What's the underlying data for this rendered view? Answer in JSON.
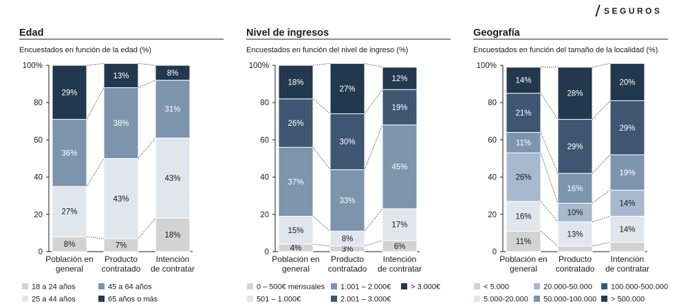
{
  "brand": {
    "name": "SEGUROS"
  },
  "colors": {
    "c1": "#d3d3d3",
    "c2": "#dfe6ec",
    "c3": "#a6b9cf",
    "c4": "#7d94ad",
    "c5": "#5b7390",
    "c6": "#3e5672",
    "c7": "#22384f"
  },
  "chart_data": [
    {
      "type": "bar",
      "stacked": true,
      "title": "Edad",
      "subtitle": "Encuestados en función de la edad (%)",
      "categories": [
        "Población en general",
        "Producto contratado",
        "Intención de contratar"
      ],
      "category_lines": [
        [
          "Población en",
          "general"
        ],
        [
          "Producto",
          "contratado"
        ],
        [
          "Intención",
          "de contratar"
        ]
      ],
      "ylim": [
        0,
        100
      ],
      "yticks": [
        "0",
        "20",
        "40",
        "60",
        "80",
        "100%"
      ],
      "legend_position": "bottom",
      "series": [
        {
          "name": "18 a 24 años",
          "color": "#d3d3d3",
          "text_color": "#1a1a1a",
          "values": [
            8,
            7,
            18
          ],
          "labels": [
            "8%",
            "7%",
            "18%"
          ]
        },
        {
          "name": "25 a 44 años",
          "color": "#dfe6ec",
          "text_color": "#1a1a1a",
          "values": [
            27,
            43,
            43
          ],
          "labels": [
            "27%",
            "43%",
            "43%"
          ]
        },
        {
          "name": "45 a 64 años",
          "color": "#7d94ad",
          "text_color": "#ffffff",
          "values": [
            36,
            38,
            31
          ],
          "labels": [
            "36%",
            "38%",
            "31%"
          ]
        },
        {
          "name": "65 años o más",
          "color": "#22384f",
          "text_color": "#ffffff",
          "values": [
            29,
            13,
            8
          ],
          "labels": [
            "29%",
            "13%",
            "8%"
          ]
        }
      ]
    },
    {
      "type": "bar",
      "stacked": true,
      "title": "Nivel de ingresos",
      "subtitle": "Encuestados en función del nivel de ingreso (%)",
      "categories": [
        "Población en general",
        "Producto contratado",
        "Intención de contratar"
      ],
      "category_lines": [
        [
          "Población en",
          "general"
        ],
        [
          "Producto",
          "contratado"
        ],
        [
          "Intención",
          "de contratar"
        ]
      ],
      "ylim": [
        0,
        100
      ],
      "yticks": [
        "0",
        "20",
        "40",
        "60",
        "80",
        "100%"
      ],
      "legend_position": "bottom",
      "series": [
        {
          "name": "0 – 500€ mensuales",
          "color": "#d3d3d3",
          "text_color": "#1a1a1a",
          "values": [
            4,
            3,
            6
          ],
          "labels": [
            "4%",
            "3%",
            "6%"
          ]
        },
        {
          "name": "501 – 1.000€",
          "color": "#dfe6ec",
          "text_color": "#1a1a1a",
          "values": [
            15,
            8,
            17
          ],
          "labels": [
            "15%",
            "8%",
            "17%"
          ]
        },
        {
          "name": "1.001 – 2.000€",
          "color": "#7d94ad",
          "text_color": "#ffffff",
          "values": [
            37,
            33,
            45
          ],
          "labels": [
            "37%",
            "33%",
            "45%"
          ]
        },
        {
          "name": "2.001 – 3.000€",
          "color": "#3e5672",
          "text_color": "#ffffff",
          "values": [
            26,
            30,
            19
          ],
          "labels": [
            "26%",
            "30%",
            "19%"
          ]
        },
        {
          "name": "> 3.000€",
          "color": "#22384f",
          "text_color": "#ffffff",
          "values": [
            18,
            27,
            12
          ],
          "labels": [
            "18%",
            "27%",
            "12%"
          ]
        }
      ]
    },
    {
      "type": "bar",
      "stacked": true,
      "title": "Geografía",
      "subtitle": "Encuestados en función del tamaño de la localidad (%)",
      "categories": [
        "Población en general",
        "Producto contratado",
        "Intención de contratar"
      ],
      "category_lines": [
        [
          "Población en",
          "general"
        ],
        [
          "Producto",
          "contratado"
        ],
        [
          "Intención",
          "de contratar"
        ]
      ],
      "ylim": [
        0,
        100
      ],
      "yticks": [
        "0",
        "20",
        "40",
        "60",
        "80",
        "100%"
      ],
      "legend_position": "bottom",
      "series": [
        {
          "name": "< 5.000",
          "color": "#d3d3d3",
          "text_color": "#1a1a1a",
          "values": [
            11,
            3,
            5
          ],
          "labels": [
            "11%",
            "",
            ""
          ]
        },
        {
          "name": "5.000-20.000",
          "color": "#dfe6ec",
          "text_color": "#1a1a1a",
          "values": [
            16,
            13,
            14
          ],
          "labels": [
            "16%",
            "13%",
            "14%"
          ]
        },
        {
          "name": "20.000-50.000",
          "color": "#a6b9cf",
          "text_color": "#1a1a1a",
          "values": [
            26,
            10,
            14
          ],
          "labels": [
            "26%",
            "10%",
            "14%"
          ]
        },
        {
          "name": "50.000-100.000",
          "color": "#7d94ad",
          "text_color": "#ffffff",
          "values": [
            11,
            16,
            19
          ],
          "labels": [
            "11%",
            "16%",
            "19%"
          ]
        },
        {
          "name": "100.000-500.000",
          "color": "#3e5672",
          "text_color": "#ffffff",
          "values": [
            21,
            29,
            29
          ],
          "labels": [
            "21%",
            "29%",
            "29%"
          ]
        },
        {
          "name": "> 500.000",
          "color": "#22384f",
          "text_color": "#ffffff",
          "values": [
            14,
            28,
            20
          ],
          "labels": [
            "14%",
            "28%",
            "20%"
          ]
        }
      ]
    }
  ]
}
